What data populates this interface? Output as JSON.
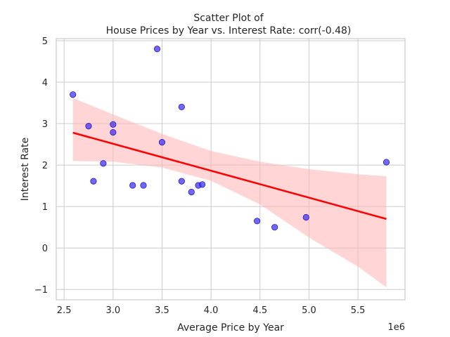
{
  "chart_data": {
    "type": "scatter",
    "title_line1": "Scatter Plot of",
    "title_line2": "House Prices by Year vs. Interest Rate: corr(-0.48)",
    "xlabel": "Average Price by Year",
    "ylabel": "Interest Rate",
    "x_offset_label": "1e6",
    "xlim": [
      2.42,
      5.98
    ],
    "ylim": [
      -1.25,
      5.05
    ],
    "x_ticks": [
      2.5,
      3.0,
      3.5,
      4.0,
      4.5,
      5.0,
      5.5
    ],
    "x_tick_labels": [
      "2.5",
      "3.0",
      "3.5",
      "4.0",
      "4.5",
      "5.0",
      "5.5"
    ],
    "y_ticks": [
      -1,
      0,
      1,
      2,
      3,
      4,
      5
    ],
    "y_tick_labels": [
      "−1",
      "0",
      "1",
      "2",
      "3",
      "4",
      "5"
    ],
    "grid": true,
    "point_color": "#3b2cf0",
    "points": [
      {
        "x": 2.59,
        "y": 3.7
      },
      {
        "x": 2.75,
        "y": 2.94
      },
      {
        "x": 2.8,
        "y": 1.61
      },
      {
        "x": 2.9,
        "y": 2.04
      },
      {
        "x": 3.0,
        "y": 2.98
      },
      {
        "x": 3.0,
        "y": 2.79
      },
      {
        "x": 3.2,
        "y": 1.51
      },
      {
        "x": 3.31,
        "y": 1.51
      },
      {
        "x": 3.45,
        "y": 4.8
      },
      {
        "x": 3.5,
        "y": 2.55
      },
      {
        "x": 3.7,
        "y": 3.4
      },
      {
        "x": 3.7,
        "y": 1.61
      },
      {
        "x": 3.8,
        "y": 1.35
      },
      {
        "x": 3.87,
        "y": 1.51
      },
      {
        "x": 3.91,
        "y": 1.53
      },
      {
        "x": 4.47,
        "y": 0.65
      },
      {
        "x": 4.65,
        "y": 0.5
      },
      {
        "x": 4.97,
        "y": 0.74
      },
      {
        "x": 5.79,
        "y": 2.07
      }
    ],
    "regression": {
      "color": "#ff0000",
      "line": [
        [
          2.59,
          2.78
        ],
        [
          5.79,
          0.7
        ]
      ],
      "band_color": "#ffb3b3",
      "band_upper": [
        [
          2.59,
          3.62
        ],
        [
          3.0,
          3.22
        ],
        [
          3.5,
          2.75
        ],
        [
          4.0,
          2.34
        ],
        [
          4.5,
          2.08
        ],
        [
          5.0,
          1.9
        ],
        [
          5.5,
          1.78
        ],
        [
          5.79,
          1.73
        ]
      ],
      "band_lower": [
        [
          2.59,
          2.1
        ],
        [
          3.0,
          2.08
        ],
        [
          3.5,
          1.94
        ],
        [
          4.0,
          1.62
        ],
        [
          4.5,
          1.05
        ],
        [
          5.0,
          0.25
        ],
        [
          5.5,
          -0.45
        ],
        [
          5.79,
          -0.95
        ]
      ]
    }
  }
}
